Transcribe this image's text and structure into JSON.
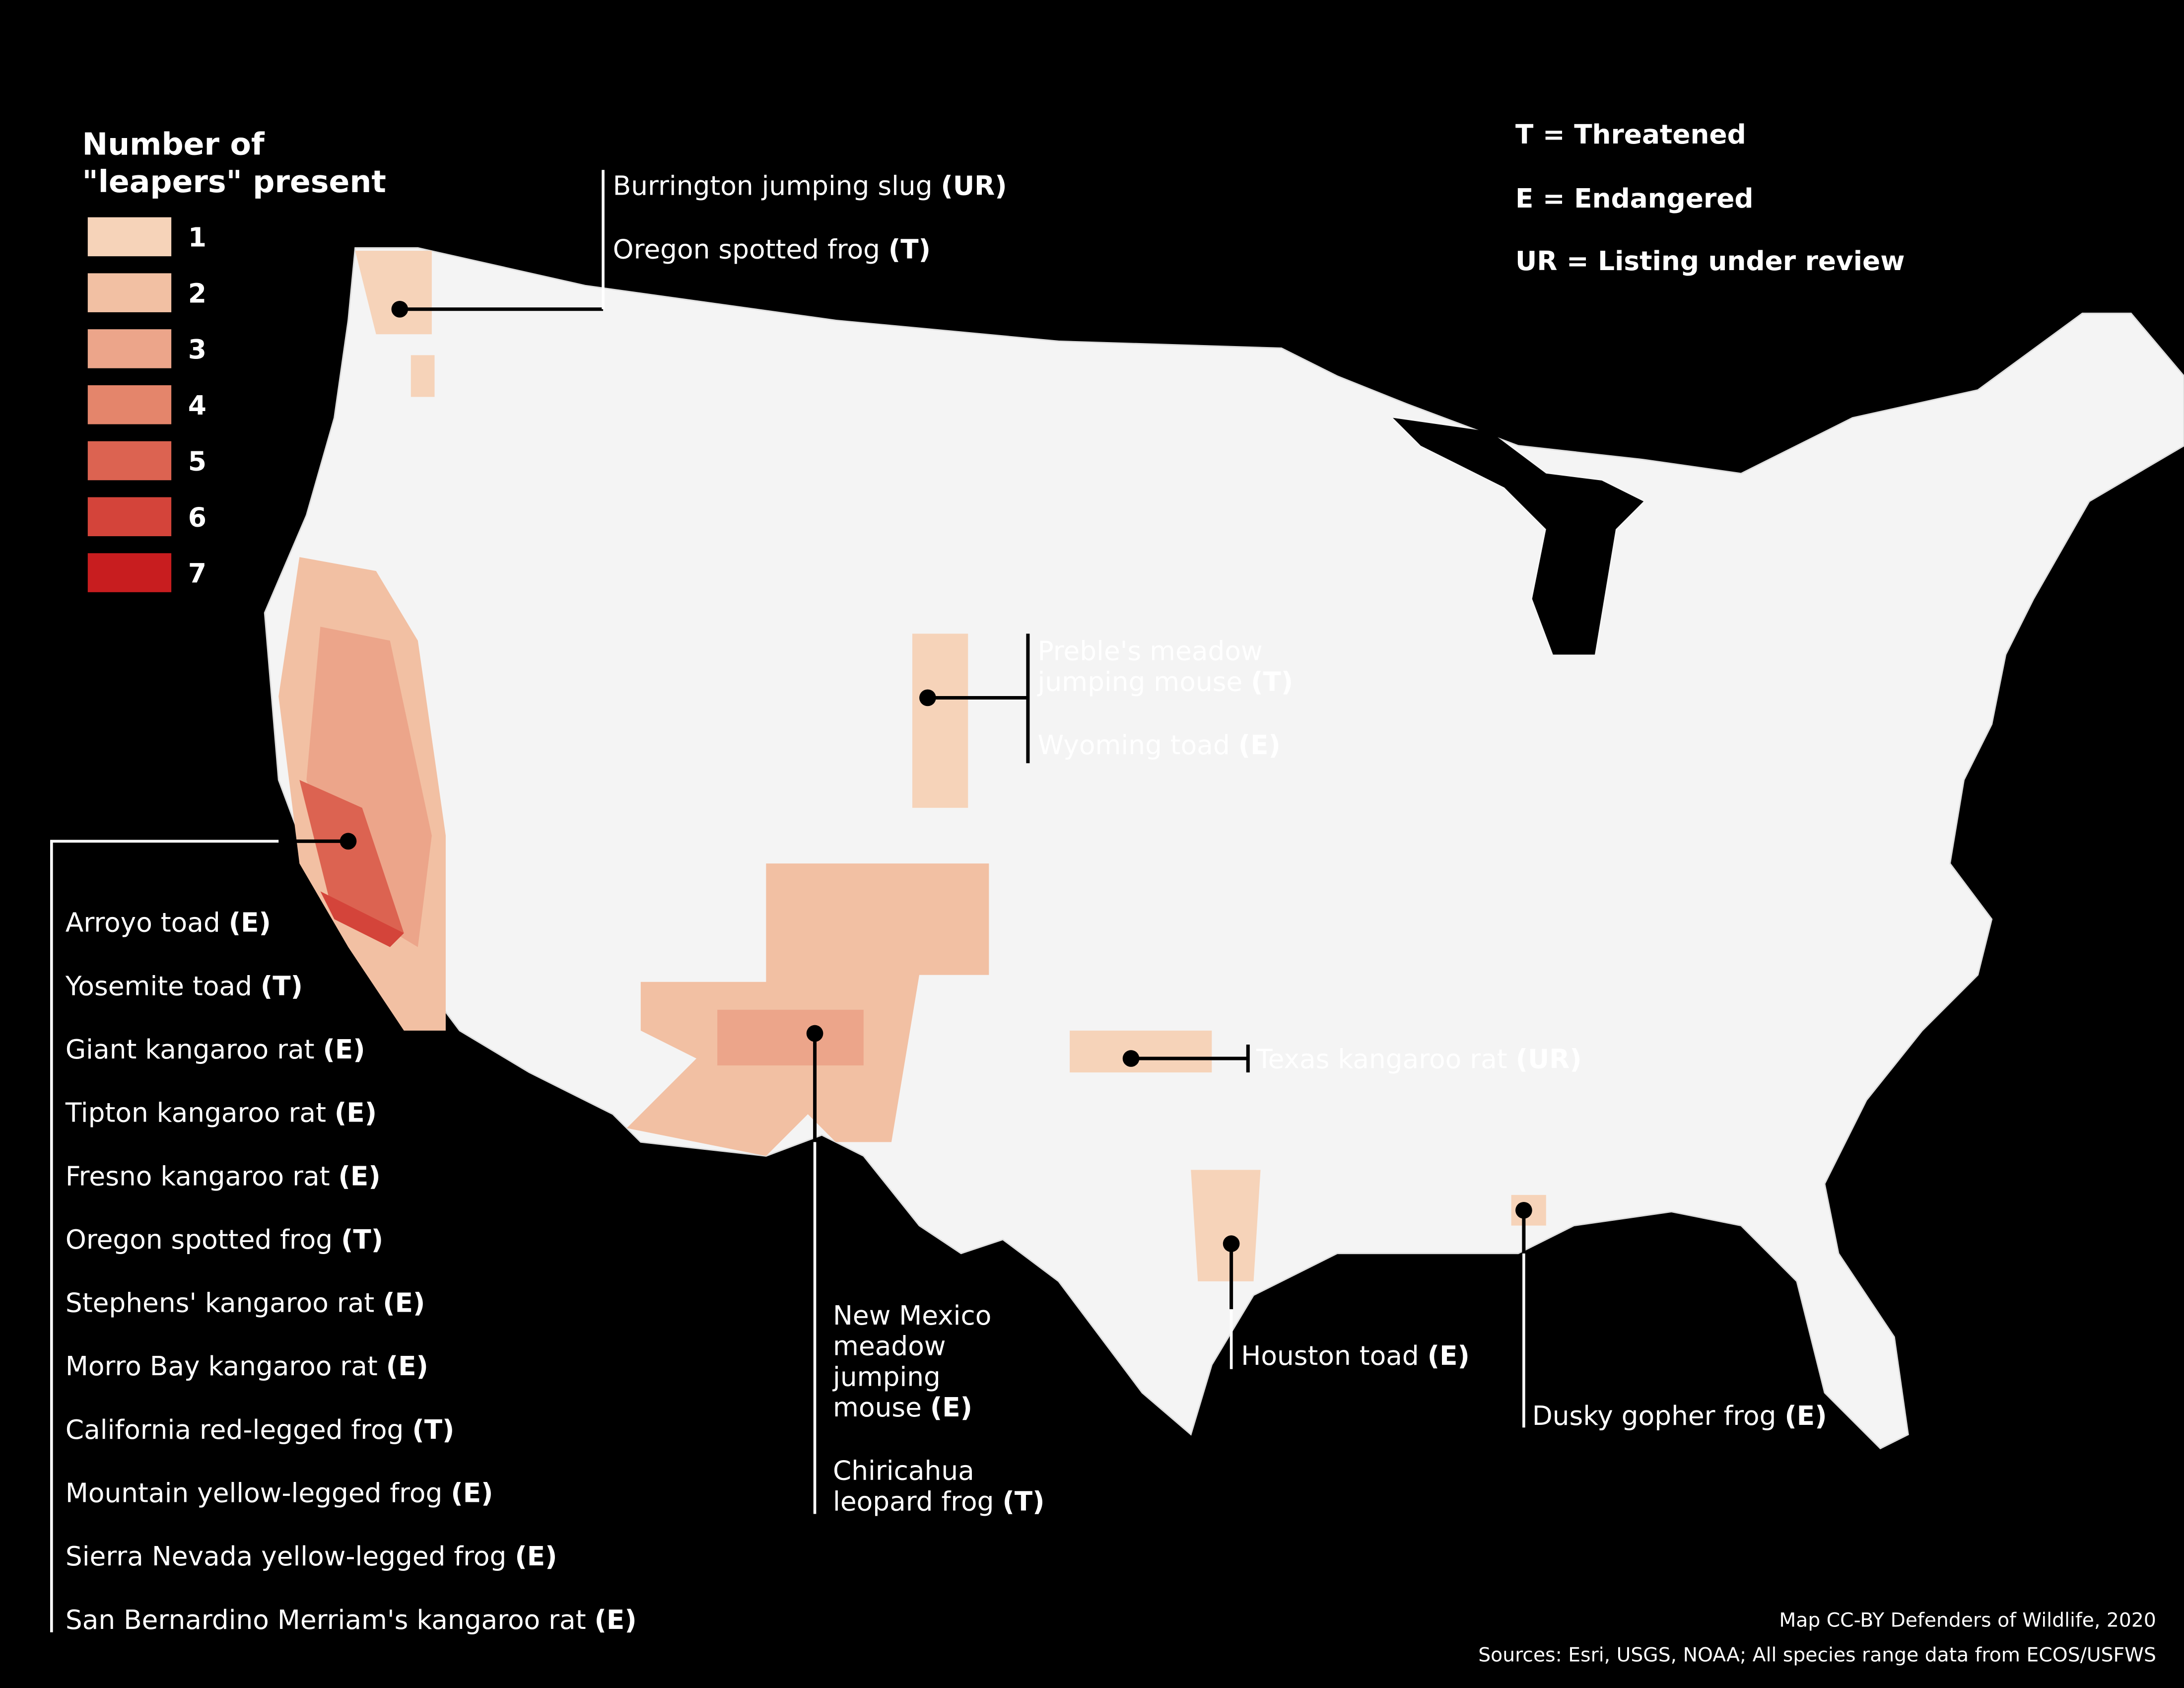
{
  "legend": {
    "title": [
      "Number of",
      "\"leapers\" present"
    ],
    "items": [
      {
        "label": 1,
        "color": "#f6d3b9"
      },
      {
        "label": 2,
        "color": "#f2c0a3"
      },
      {
        "label": 3,
        "color": "#eca58a"
      },
      {
        "label": 4,
        "color": "#e4856b"
      },
      {
        "label": 5,
        "color": "#dc6351"
      },
      {
        "label": 6,
        "color": "#d4443a"
      },
      {
        "label": 7,
        "color": "#c81d1f"
      }
    ]
  },
  "key": [
    "T = Threatened",
    "E = Endangered",
    "UR = Listing under review"
  ],
  "callouts": [
    {
      "species": [
        {
          "name": [
            "Burrington jumping slug"
          ],
          "status": "(UR)"
        },
        {
          "name": [
            "Oregon spotted frog"
          ],
          "status": "(T)"
        }
      ]
    },
    {
      "species": [
        {
          "name": [
            "Preble's meadow",
            "jumping mouse"
          ],
          "status": "(T)"
        },
        {
          "name": [
            "Wyoming toad"
          ],
          "status": "(E)"
        }
      ]
    },
    {
      "species": [
        {
          "name": [
            "Texas kangaroo rat"
          ],
          "status": "(UR)"
        }
      ]
    },
    {
      "species": [
        {
          "name": [
            "Houston toad"
          ],
          "status": "(E)"
        }
      ]
    },
    {
      "species": [
        {
          "name": [
            "Dusky gopher frog"
          ],
          "status": "(E)"
        }
      ]
    },
    {
      "species": [
        {
          "name": [
            "New Mexico",
            "meadow",
            "jumping",
            "mouse"
          ],
          "status": "(E)"
        },
        {
          "name": [
            "Chiricahua",
            "leopard frog"
          ],
          "status": "(T)"
        }
      ]
    },
    {
      "species": [
        {
          "name": [
            "Arroyo toad"
          ],
          "status": "(E)"
        },
        {
          "name": [
            "Yosemite toad"
          ],
          "status": "(T)"
        },
        {
          "name": [
            "Giant kangaroo rat"
          ],
          "status": "(E)"
        },
        {
          "name": [
            "Tipton kangaroo rat"
          ],
          "status": "(E)"
        },
        {
          "name": [
            "Fresno kangaroo rat"
          ],
          "status": "(E)"
        },
        {
          "name": [
            "Oregon spotted frog"
          ],
          "status": "(T)"
        },
        {
          "name": [
            "Stephens' kangaroo rat"
          ],
          "status": "(E)"
        },
        {
          "name": [
            "Morro Bay kangaroo rat"
          ],
          "status": "(E)"
        },
        {
          "name": [
            "California red-legged frog"
          ],
          "status": "(T)"
        },
        {
          "name": [
            "Mountain yellow-legged frog"
          ],
          "status": "(E)"
        },
        {
          "name": [
            "Sierra Nevada yellow-legged frog"
          ],
          "status": "(E)"
        },
        {
          "name": [
            "San Bernardino Merriam's kangaroo rat"
          ],
          "status": "(E)"
        }
      ]
    }
  ],
  "credits": [
    "Map CC-BY Defenders of Wildlife, 2020",
    "Sources: Esri, USGS, NOAA; All species range data from ECOS/USFWS"
  ]
}
